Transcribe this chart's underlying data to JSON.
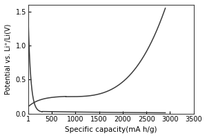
{
  "title": "",
  "xlabel": "Specific capacity(mA h/g)",
  "ylabel": "Potential vs. Li⁺/Li(V)",
  "xlim": [
    1,
    3500
  ],
  "ylim": [
    0.0,
    1.6
  ],
  "xticks": [
    1,
    500,
    1000,
    1500,
    2000,
    2500,
    3000,
    3500
  ],
  "yticks": [
    0.0,
    0.5,
    1.0,
    1.5
  ],
  "line_color": "#3a3a3a",
  "line_width": 1.1,
  "background_color": "#ffffff",
  "figsize": [
    3.0,
    2.0
  ],
  "dpi": 100
}
